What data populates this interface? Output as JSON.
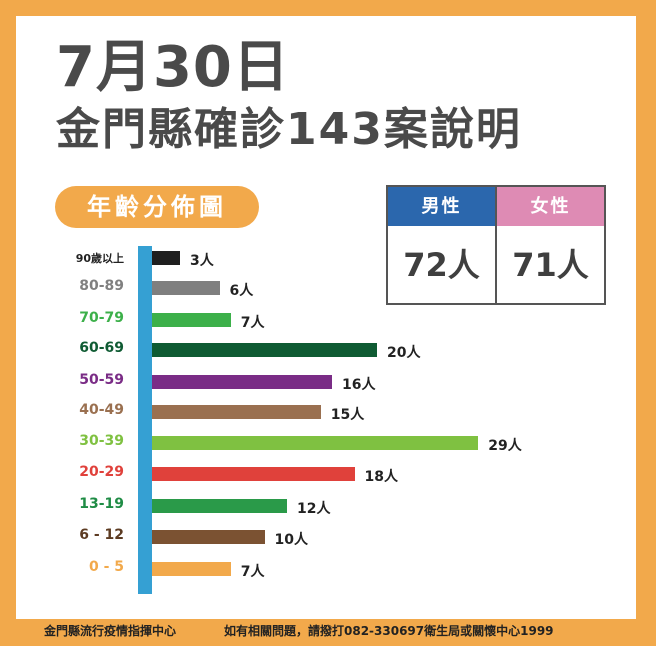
{
  "header": {
    "date": "7月30日",
    "title": "金門縣確診143案說明"
  },
  "section_label": "年齡分佈圖",
  "gender": {
    "male": {
      "label": "男性",
      "value": "72人",
      "color": "#2b67ad"
    },
    "female": {
      "label": "女性",
      "value": "71人",
      "color": "#de8bb4"
    }
  },
  "chart_data": {
    "type": "bar",
    "orientation": "horizontal",
    "title": "年齡分佈圖",
    "xlabel": "",
    "ylabel": "",
    "categories": [
      "90歲以上",
      "80-89",
      "70-79",
      "60-69",
      "50-59",
      "40-49",
      "30-39",
      "20-29",
      "13-19",
      "6-12",
      "0-5"
    ],
    "values": [
      3,
      6,
      7,
      20,
      16,
      15,
      29,
      18,
      12,
      10,
      7
    ],
    "value_labels": [
      "3人",
      "6人",
      "7人",
      "20人",
      "16人",
      "15人",
      "29人",
      "18人",
      "12人",
      "10人",
      "7人"
    ],
    "category_labels_display": [
      "90歲以上",
      "80-89",
      "70-79",
      "60-69",
      "50-59",
      "40-49",
      "30-39",
      "20-29",
      "13-19",
      "6 - 12",
      "0  -  5"
    ],
    "colors": [
      "#1f1f1f",
      "#7f7f7f",
      "#3cb04a",
      "#0f5b33",
      "#7a2c86",
      "#9a7050",
      "#7fc141",
      "#e0413b",
      "#2a9a49",
      "#7b5232",
      "#f2a94b"
    ],
    "label_colors": [
      "#222222",
      "#808080",
      "#3cb04a",
      "#0f5b33",
      "#7a2c86",
      "#9a7050",
      "#7fc141",
      "#e0413b",
      "#1f8c45",
      "#5c3b22",
      "#f2a94b"
    ],
    "axis_color": "#35a0d3",
    "grid": false,
    "legend": "none",
    "total": 143
  },
  "footer": {
    "left": "金門縣流行疫情指揮中心",
    "right": "如有相關問題，請撥打082-330697衛生局或關懷中心1999"
  }
}
